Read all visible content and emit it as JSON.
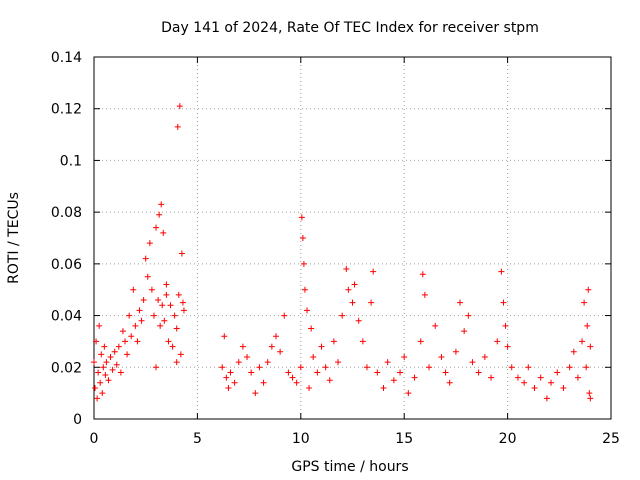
{
  "chart_data": {
    "type": "scatter",
    "title": "Day 141 of 2024, Rate Of TEC Index for receiver stpm",
    "xlabel": "GPS time / hours",
    "ylabel": "ROTI / TECUs",
    "xlim": [
      0,
      25
    ],
    "ylim": [
      0,
      0.14
    ],
    "grid": true,
    "marker": "+",
    "color": "#ff0000",
    "xticks": [
      0,
      5,
      10,
      15,
      20,
      25
    ],
    "xtick_labels": [
      "0",
      "5",
      "10",
      "15",
      "20",
      "25"
    ],
    "yticks": [
      0,
      0.02,
      0.04,
      0.06,
      0.08,
      0.1,
      0.12,
      0.14
    ],
    "ytick_labels": [
      "0",
      "0.02",
      "0.04",
      "0.06",
      "0.08",
      "0.1",
      "0.12",
      "0.14"
    ],
    "series": [
      {
        "name": "ROTI",
        "points": [
          [
            0.0,
            0.022
          ],
          [
            0.05,
            0.012
          ],
          [
            0.1,
            0.03
          ],
          [
            0.15,
            0.008
          ],
          [
            0.2,
            0.018
          ],
          [
            0.25,
            0.036
          ],
          [
            0.3,
            0.014
          ],
          [
            0.35,
            0.025
          ],
          [
            0.4,
            0.01
          ],
          [
            0.45,
            0.02
          ],
          [
            0.5,
            0.028
          ],
          [
            0.55,
            0.017
          ],
          [
            0.6,
            0.022
          ],
          [
            0.7,
            0.015
          ],
          [
            0.8,
            0.024
          ],
          [
            0.9,
            0.019
          ],
          [
            1.0,
            0.026
          ],
          [
            1.1,
            0.021
          ],
          [
            1.2,
            0.028
          ],
          [
            1.3,
            0.018
          ],
          [
            1.4,
            0.034
          ],
          [
            1.5,
            0.03
          ],
          [
            1.6,
            0.025
          ],
          [
            1.7,
            0.04
          ],
          [
            1.8,
            0.032
          ],
          [
            1.9,
            0.05
          ],
          [
            2.0,
            0.036
          ],
          [
            2.1,
            0.03
          ],
          [
            2.2,
            0.042
          ],
          [
            2.3,
            0.038
          ],
          [
            2.4,
            0.046
          ],
          [
            2.5,
            0.062
          ],
          [
            2.6,
            0.055
          ],
          [
            2.7,
            0.068
          ],
          [
            2.8,
            0.05
          ],
          [
            2.9,
            0.04
          ],
          [
            3.0,
            0.074
          ],
          [
            3.1,
            0.046
          ],
          [
            3.15,
            0.079
          ],
          [
            3.2,
            0.036
          ],
          [
            3.25,
            0.083
          ],
          [
            3.3,
            0.044
          ],
          [
            3.35,
            0.072
          ],
          [
            3.4,
            0.038
          ],
          [
            3.5,
            0.048
          ],
          [
            3.6,
            0.03
          ],
          [
            3.7,
            0.044
          ],
          [
            3.8,
            0.028
          ],
          [
            3.9,
            0.04
          ],
          [
            4.0,
            0.035
          ],
          [
            4.05,
            0.113
          ],
          [
            4.1,
            0.048
          ],
          [
            4.15,
            0.121
          ],
          [
            4.2,
            0.025
          ],
          [
            4.25,
            0.064
          ],
          [
            4.3,
            0.045
          ],
          [
            4.35,
            0.042
          ],
          [
            3.0,
            0.02
          ],
          [
            3.5,
            0.052
          ],
          [
            4.0,
            0.022
          ],
          [
            6.2,
            0.02
          ],
          [
            6.3,
            0.032
          ],
          [
            6.4,
            0.016
          ],
          [
            6.5,
            0.012
          ],
          [
            6.6,
            0.018
          ],
          [
            6.8,
            0.014
          ],
          [
            7.0,
            0.022
          ],
          [
            7.2,
            0.028
          ],
          [
            7.4,
            0.024
          ],
          [
            7.6,
            0.018
          ],
          [
            7.8,
            0.01
          ],
          [
            8.0,
            0.02
          ],
          [
            8.2,
            0.014
          ],
          [
            8.4,
            0.022
          ],
          [
            8.6,
            0.028
          ],
          [
            8.8,
            0.032
          ],
          [
            9.0,
            0.026
          ],
          [
            9.2,
            0.04
          ],
          [
            9.4,
            0.018
          ],
          [
            9.6,
            0.016
          ],
          [
            9.8,
            0.014
          ],
          [
            10.0,
            0.02
          ],
          [
            10.05,
            0.078
          ],
          [
            10.1,
            0.07
          ],
          [
            10.15,
            0.06
          ],
          [
            10.2,
            0.05
          ],
          [
            10.3,
            0.042
          ],
          [
            10.4,
            0.012
          ],
          [
            10.5,
            0.035
          ],
          [
            10.6,
            0.024
          ],
          [
            10.8,
            0.018
          ],
          [
            11.0,
            0.028
          ],
          [
            11.2,
            0.02
          ],
          [
            11.4,
            0.015
          ],
          [
            11.6,
            0.03
          ],
          [
            11.8,
            0.022
          ],
          [
            12.0,
            0.04
          ],
          [
            12.2,
            0.058
          ],
          [
            12.3,
            0.05
          ],
          [
            12.5,
            0.045
          ],
          [
            12.6,
            0.052
          ],
          [
            12.8,
            0.038
          ],
          [
            13.0,
            0.03
          ],
          [
            13.2,
            0.02
          ],
          [
            13.4,
            0.045
          ],
          [
            13.5,
            0.057
          ],
          [
            13.7,
            0.018
          ],
          [
            14.0,
            0.012
          ],
          [
            14.2,
            0.022
          ],
          [
            14.5,
            0.015
          ],
          [
            14.8,
            0.018
          ],
          [
            15.0,
            0.024
          ],
          [
            15.2,
            0.01
          ],
          [
            15.5,
            0.016
          ],
          [
            15.8,
            0.03
          ],
          [
            15.9,
            0.056
          ],
          [
            16.0,
            0.048
          ],
          [
            16.2,
            0.02
          ],
          [
            16.5,
            0.036
          ],
          [
            16.8,
            0.024
          ],
          [
            17.0,
            0.018
          ],
          [
            17.2,
            0.014
          ],
          [
            17.5,
            0.026
          ],
          [
            17.7,
            0.045
          ],
          [
            17.9,
            0.034
          ],
          [
            18.1,
            0.04
          ],
          [
            18.3,
            0.022
          ],
          [
            18.6,
            0.018
          ],
          [
            18.9,
            0.024
          ],
          [
            19.2,
            0.016
          ],
          [
            19.5,
            0.03
          ],
          [
            19.7,
            0.057
          ],
          [
            19.8,
            0.045
          ],
          [
            19.9,
            0.036
          ],
          [
            20.0,
            0.028
          ],
          [
            20.2,
            0.02
          ],
          [
            20.5,
            0.016
          ],
          [
            20.8,
            0.014
          ],
          [
            21.0,
            0.02
          ],
          [
            21.3,
            0.012
          ],
          [
            21.6,
            0.016
          ],
          [
            21.9,
            0.008
          ],
          [
            22.1,
            0.014
          ],
          [
            22.4,
            0.018
          ],
          [
            22.7,
            0.012
          ],
          [
            23.0,
            0.02
          ],
          [
            23.2,
            0.026
          ],
          [
            23.4,
            0.016
          ],
          [
            23.6,
            0.03
          ],
          [
            23.7,
            0.045
          ],
          [
            23.8,
            0.02
          ],
          [
            23.85,
            0.036
          ],
          [
            23.9,
            0.05
          ],
          [
            23.95,
            0.01
          ],
          [
            24.0,
            0.028
          ],
          [
            24.0,
            0.008
          ]
        ]
      }
    ]
  }
}
